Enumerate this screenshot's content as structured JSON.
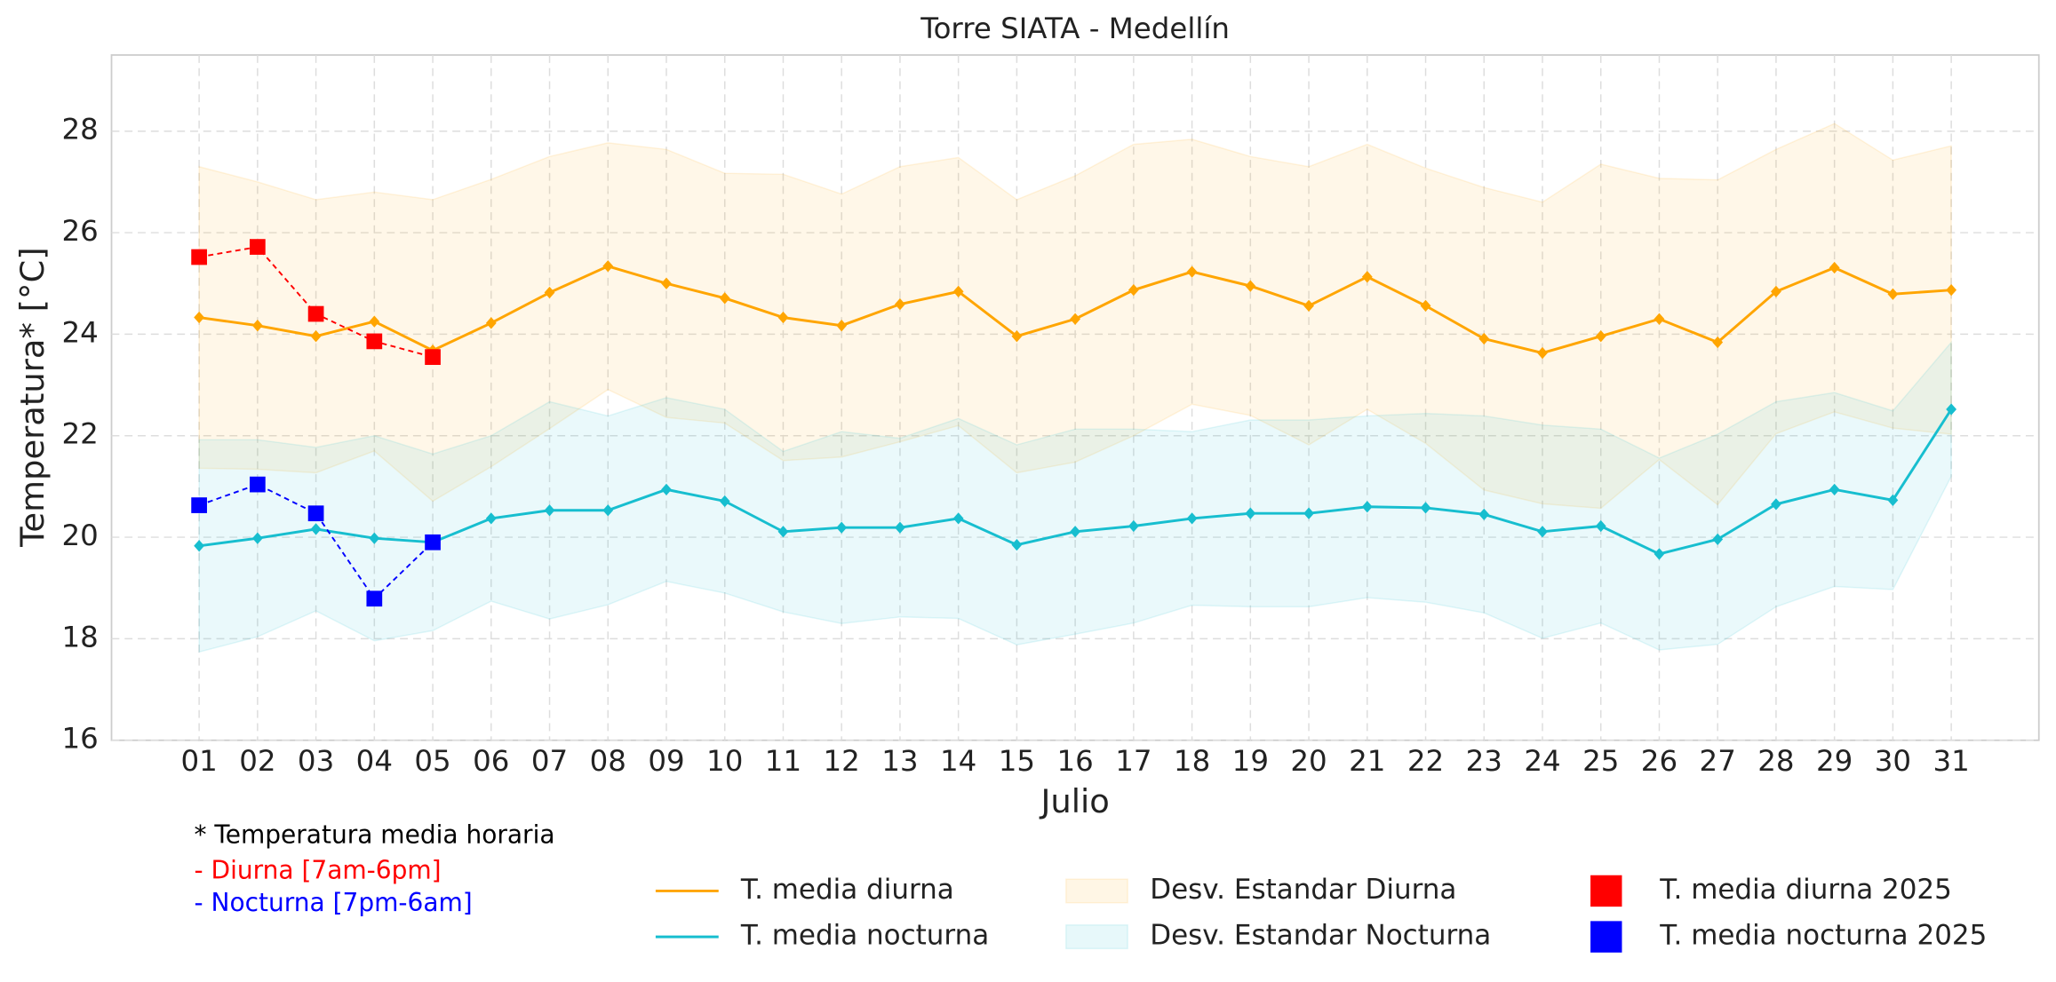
{
  "chart_data": {
    "type": "line",
    "title": "Torre SIATA - Medellín",
    "x_label": "Julio",
    "y_label": "Temperatura* [°C]",
    "categories": [
      "01",
      "02",
      "03",
      "04",
      "05",
      "06",
      "07",
      "08",
      "09",
      "10",
      "11",
      "12",
      "13",
      "14",
      "15",
      "16",
      "17",
      "18",
      "19",
      "20",
      "21",
      "22",
      "23",
      "24",
      "25",
      "26",
      "27",
      "28",
      "29",
      "30",
      "31"
    ],
    "ylim": [
      16,
      29.5
    ],
    "yticks": [
      16,
      18,
      20,
      22,
      24,
      26,
      28
    ],
    "grid": true,
    "series": [
      {
        "name": "T. media diurna",
        "color": "#ffa500",
        "style": "solid",
        "marker": "diamond",
        "values": [
          24.33,
          24.17,
          23.96,
          24.25,
          23.68,
          24.22,
          24.82,
          25.34,
          25.0,
          24.71,
          24.33,
          24.17,
          24.59,
          24.84,
          23.96,
          24.3,
          24.87,
          25.23,
          24.95,
          24.56,
          25.13,
          24.56,
          23.91,
          23.63,
          23.96,
          24.3,
          23.84,
          24.84,
          25.31,
          24.79,
          24.87
        ]
      },
      {
        "name": "T. media nocturna",
        "color": "#17becf",
        "style": "solid",
        "marker": "diamond",
        "values": [
          19.83,
          19.98,
          20.16,
          19.98,
          19.9,
          20.37,
          20.53,
          20.53,
          20.94,
          20.71,
          20.11,
          20.19,
          20.19,
          20.37,
          19.85,
          20.11,
          20.22,
          20.37,
          20.47,
          20.47,
          20.6,
          20.58,
          20.45,
          20.11,
          20.22,
          19.67,
          19.96,
          20.65,
          20.94,
          20.73,
          22.52
        ]
      },
      {
        "name": "T. media diurna 2025",
        "color": "#ff0000",
        "style": "dashed",
        "marker": "square",
        "values": [
          25.52,
          25.72,
          24.4,
          23.86,
          23.55,
          null,
          null,
          null,
          null,
          null,
          null,
          null,
          null,
          null,
          null,
          null,
          null,
          null,
          null,
          null,
          null,
          null,
          null,
          null,
          null,
          null,
          null,
          null,
          null,
          null,
          null
        ]
      },
      {
        "name": "T. media nocturna 2025",
        "color": "#0000ff",
        "style": "dashed",
        "marker": "square",
        "values": [
          20.63,
          21.04,
          20.47,
          18.79,
          19.9,
          null,
          null,
          null,
          null,
          null,
          null,
          null,
          null,
          null,
          null,
          null,
          null,
          null,
          null,
          null,
          null,
          null,
          null,
          null,
          null,
          null,
          null,
          null,
          null,
          null,
          null
        ]
      }
    ],
    "bands": [
      {
        "name": "Desv. Estandar Diurna",
        "color": "#ffa500",
        "upper": [
          27.3,
          27.0,
          26.65,
          26.8,
          26.65,
          27.05,
          27.5,
          27.77,
          27.64,
          27.17,
          27.15,
          26.76,
          27.3,
          27.48,
          26.65,
          27.12,
          27.74,
          27.84,
          27.5,
          27.3,
          27.74,
          27.27,
          26.89,
          26.6,
          27.35,
          27.07,
          27.04,
          27.64,
          28.15,
          27.43,
          27.71
        ],
        "lower": [
          21.36,
          21.34,
          21.27,
          21.7,
          20.71,
          21.39,
          22.14,
          22.91,
          22.36,
          22.25,
          21.51,
          21.58,
          21.88,
          22.2,
          21.27,
          21.48,
          22.0,
          22.62,
          22.4,
          21.82,
          22.52,
          21.85,
          20.93,
          20.66,
          20.57,
          21.53,
          20.64,
          22.04,
          22.47,
          22.15,
          22.03
        ]
      },
      {
        "name": "Desv. Estandar Nocturna",
        "color": "#17becf",
        "upper": [
          21.92,
          21.92,
          21.77,
          22.0,
          21.64,
          22.0,
          22.67,
          22.39,
          22.75,
          22.52,
          21.69,
          22.08,
          21.95,
          22.34,
          21.82,
          22.13,
          22.13,
          22.08,
          22.31,
          22.31,
          22.39,
          22.44,
          22.39,
          22.21,
          22.13,
          21.56,
          22.03,
          22.67,
          22.85,
          22.49,
          23.84
        ],
        "lower": [
          17.74,
          18.04,
          18.55,
          17.96,
          18.16,
          18.74,
          18.39,
          18.67,
          19.13,
          18.9,
          18.53,
          18.3,
          18.43,
          18.4,
          17.88,
          18.09,
          18.31,
          18.66,
          18.63,
          18.63,
          18.81,
          18.72,
          18.51,
          18.01,
          18.31,
          17.78,
          17.89,
          18.63,
          19.03,
          18.97,
          21.2
        ]
      }
    ],
    "annotations": [
      {
        "text": "* Temperatura media horaria",
        "color": "#000000"
      },
      {
        "text": "- Diurna [7am-6pm]",
        "color": "#ff0000"
      },
      {
        "text": "- Nocturna [7pm-6am]",
        "color": "#0000ff"
      }
    ]
  }
}
